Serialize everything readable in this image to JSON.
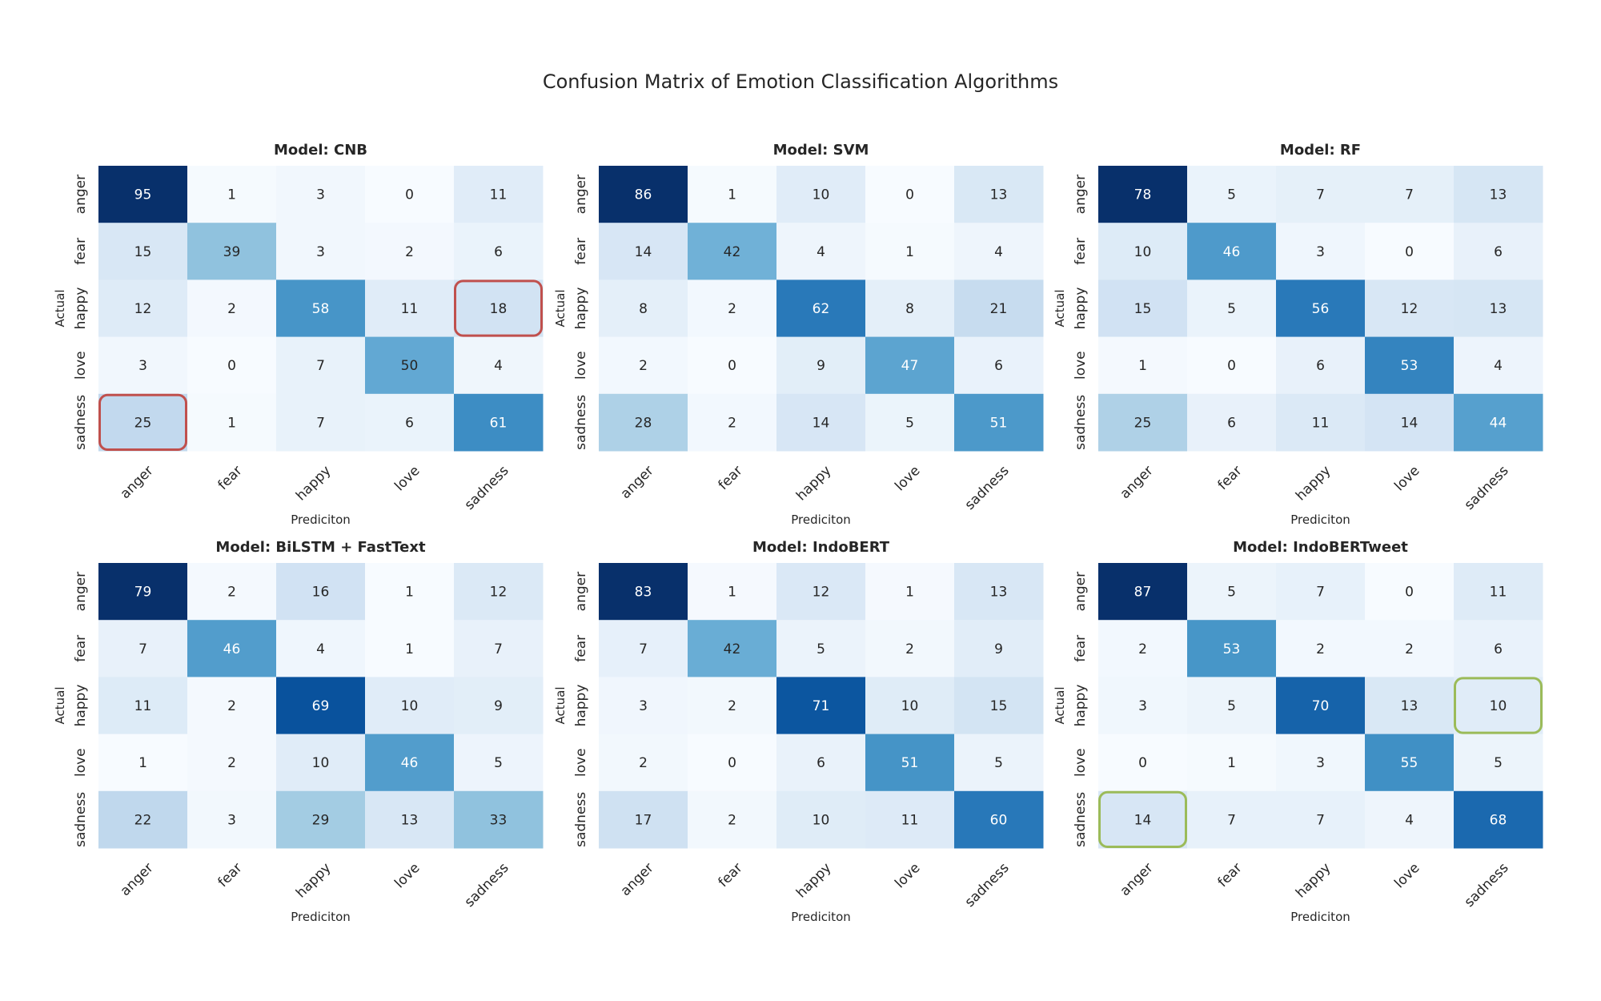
{
  "figure": {
    "title": "Confusion Matrix of Emotion Classification Algorithms",
    "colormap": "Blues",
    "highlight_colors": {
      "red": "#c0504d",
      "green": "#9bbb59"
    }
  },
  "chart_data": [
    {
      "type": "heatmap",
      "title": "Model: CNB",
      "xlabel": "Prediciton",
      "ylabel": "Actual",
      "x_labels": [
        "anger",
        "fear",
        "happy",
        "love",
        "sadness"
      ],
      "y_labels": [
        "anger",
        "fear",
        "happy",
        "love",
        "sadness"
      ],
      "matrix": [
        [
          95,
          1,
          3,
          0,
          11
        ],
        [
          15,
          39,
          3,
          2,
          6
        ],
        [
          12,
          2,
          58,
          11,
          18
        ],
        [
          3,
          0,
          7,
          50,
          4
        ],
        [
          25,
          1,
          7,
          6,
          61
        ]
      ],
      "highlights": [
        {
          "row": 2,
          "col": 4,
          "color": "red"
        },
        {
          "row": 4,
          "col": 0,
          "color": "red"
        }
      ]
    },
    {
      "type": "heatmap",
      "title": "Model: SVM",
      "xlabel": "Prediciton",
      "ylabel": "Actual",
      "x_labels": [
        "anger",
        "fear",
        "happy",
        "love",
        "sadness"
      ],
      "y_labels": [
        "anger",
        "fear",
        "happy",
        "love",
        "sadness"
      ],
      "matrix": [
        [
          86,
          1,
          10,
          0,
          13
        ],
        [
          14,
          42,
          4,
          1,
          4
        ],
        [
          8,
          2,
          62,
          8,
          21
        ],
        [
          2,
          0,
          9,
          47,
          6
        ],
        [
          28,
          2,
          14,
          5,
          51
        ]
      ],
      "highlights": []
    },
    {
      "type": "heatmap",
      "title": "Model: RF",
      "xlabel": "Prediciton",
      "ylabel": "Actual",
      "x_labels": [
        "anger",
        "fear",
        "happy",
        "love",
        "sadness"
      ],
      "y_labels": [
        "anger",
        "fear",
        "happy",
        "love",
        "sadness"
      ],
      "matrix": [
        [
          78,
          5,
          7,
          7,
          13
        ],
        [
          10,
          46,
          3,
          0,
          6
        ],
        [
          15,
          5,
          56,
          12,
          13
        ],
        [
          1,
          0,
          6,
          53,
          4
        ],
        [
          25,
          6,
          11,
          14,
          44
        ]
      ],
      "highlights": []
    },
    {
      "type": "heatmap",
      "title": "Model: BiLSTM + FastText",
      "xlabel": "Prediciton",
      "ylabel": "Actual",
      "x_labels": [
        "anger",
        "fear",
        "happy",
        "love",
        "sadness"
      ],
      "y_labels": [
        "anger",
        "fear",
        "happy",
        "love",
        "sadness"
      ],
      "matrix": [
        [
          79,
          2,
          16,
          1,
          12
        ],
        [
          7,
          46,
          4,
          1,
          7
        ],
        [
          11,
          2,
          69,
          10,
          9
        ],
        [
          1,
          2,
          10,
          46,
          5
        ],
        [
          22,
          3,
          29,
          13,
          33
        ]
      ],
      "highlights": []
    },
    {
      "type": "heatmap",
      "title": "Model: IndoBERT",
      "xlabel": "Prediciton",
      "ylabel": "Actual",
      "x_labels": [
        "anger",
        "fear",
        "happy",
        "love",
        "sadness"
      ],
      "y_labels": [
        "anger",
        "fear",
        "happy",
        "love",
        "sadness"
      ],
      "matrix": [
        [
          83,
          1,
          12,
          1,
          13
        ],
        [
          7,
          42,
          5,
          2,
          9
        ],
        [
          3,
          2,
          71,
          10,
          15
        ],
        [
          2,
          0,
          6,
          51,
          5
        ],
        [
          17,
          2,
          10,
          11,
          60
        ]
      ],
      "highlights": []
    },
    {
      "type": "heatmap",
      "title": "Model: IndoBERTweet",
      "xlabel": "Prediciton",
      "ylabel": "Actual",
      "x_labels": [
        "anger",
        "fear",
        "happy",
        "love",
        "sadness"
      ],
      "y_labels": [
        "anger",
        "fear",
        "happy",
        "love",
        "sadness"
      ],
      "matrix": [
        [
          87,
          5,
          7,
          0,
          11
        ],
        [
          2,
          53,
          2,
          2,
          6
        ],
        [
          3,
          5,
          70,
          13,
          10
        ],
        [
          0,
          1,
          3,
          55,
          5
        ],
        [
          14,
          7,
          7,
          4,
          68
        ]
      ],
      "highlights": [
        {
          "row": 2,
          "col": 4,
          "color": "green"
        },
        {
          "row": 4,
          "col": 0,
          "color": "green"
        }
      ]
    }
  ]
}
